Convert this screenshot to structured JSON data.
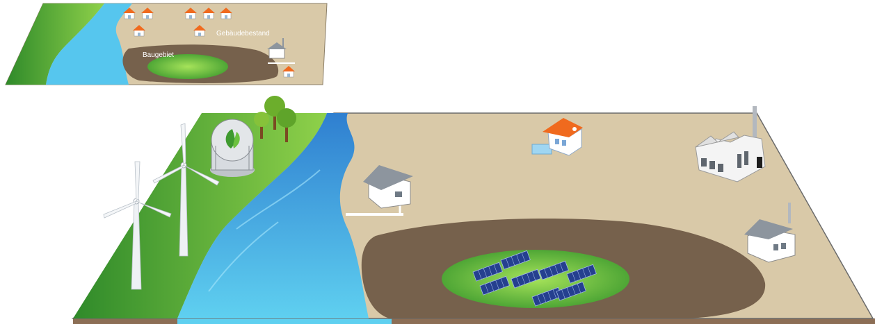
{
  "small_map": {
    "label_building_area": "Baugebiet",
    "label_building_stock": "Gebäudebestand"
  },
  "palette": {
    "land": "#d9c9a8",
    "grass": "#5aa53a",
    "grass_light": "#8fd14a",
    "river": "#3fb7e8",
    "river_light": "#7fdcf6",
    "soil": "#76614c",
    "roof": "#f06a1e"
  },
  "icons": [
    "house-icon",
    "wind-turbine-icon",
    "biogas-plant-icon",
    "tree-icon",
    "factory-icon",
    "solar-panel-icon",
    "heat-pipe-icon"
  ]
}
